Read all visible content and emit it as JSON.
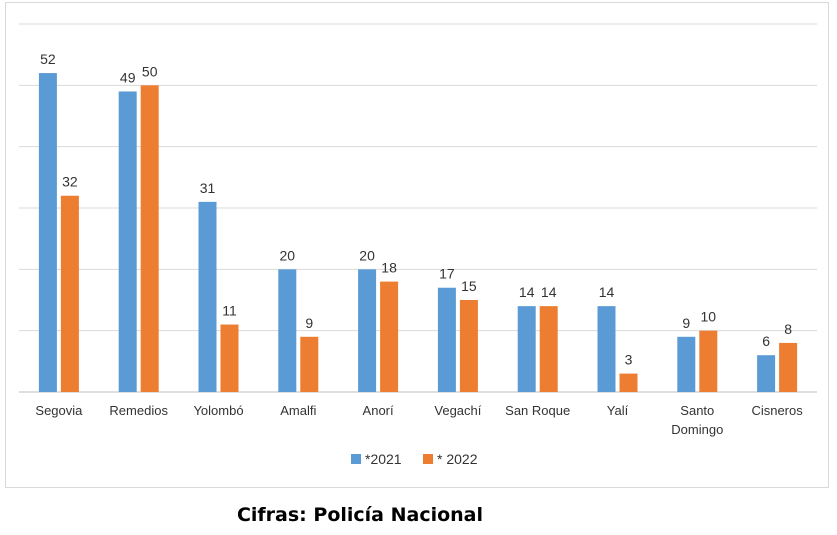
{
  "chart_data": {
    "type": "bar",
    "categories": [
      "Segovia",
      "Remedios",
      "Yolombó",
      "Amalfi",
      "Anorí",
      "Vegachí",
      "San Roque",
      "Yalí",
      "Santo Domingo",
      "Cisneros"
    ],
    "series": [
      {
        "name": "*2021",
        "color": "#5b9bd5",
        "values": [
          52,
          49,
          31,
          20,
          20,
          17,
          14,
          14,
          9,
          6
        ]
      },
      {
        "name": "* 2022",
        "color": "#ed7d31",
        "values": [
          32,
          50,
          11,
          9,
          18,
          15,
          14,
          3,
          10,
          8
        ]
      }
    ],
    "ylim": [
      0,
      60
    ],
    "grid": true,
    "legend_position": "bottom"
  },
  "caption": "Cifras: Policía Nacional"
}
